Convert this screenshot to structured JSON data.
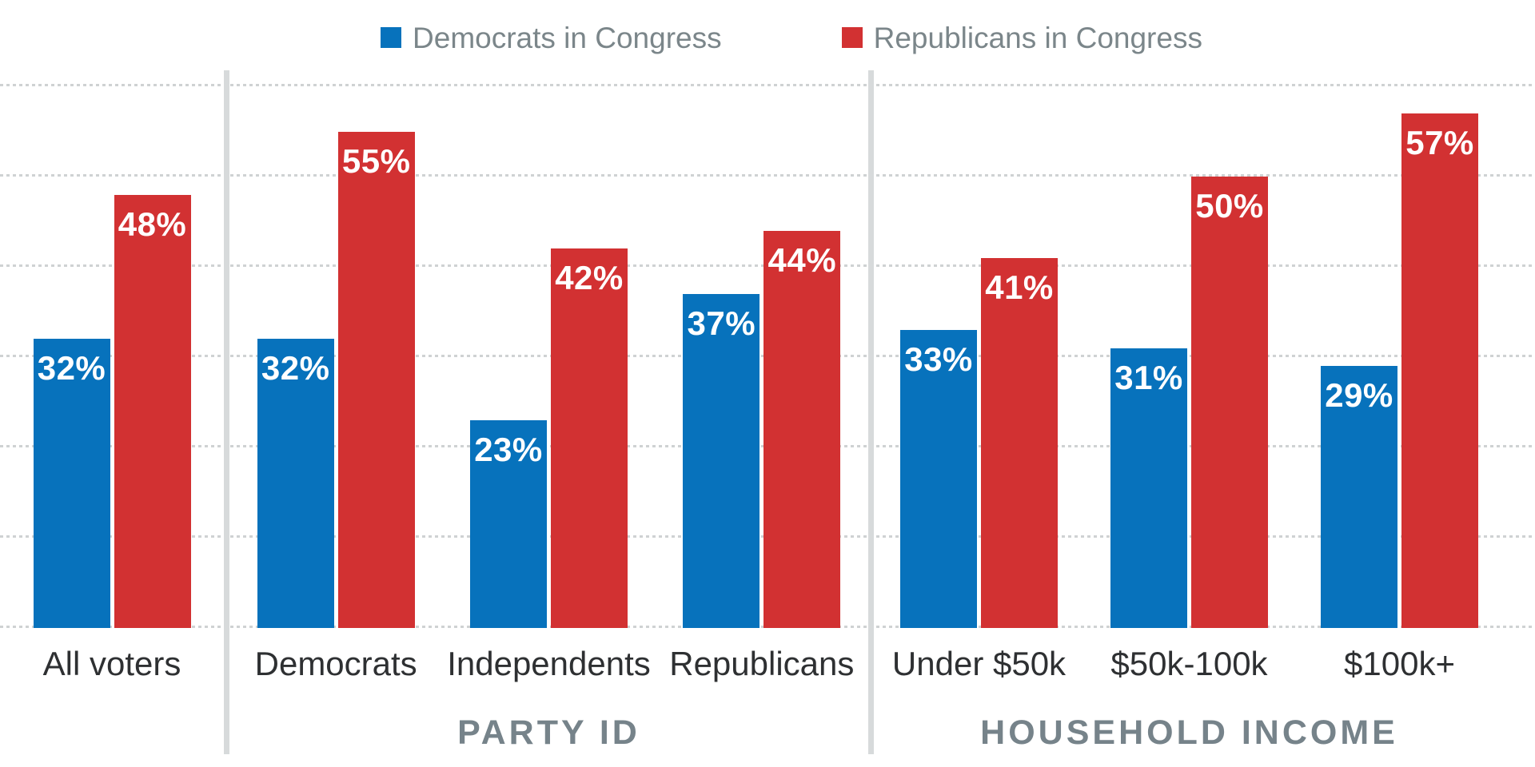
{
  "chart_data": {
    "type": "bar",
    "unit": "%",
    "series": [
      {
        "name": "Democrats in Congress",
        "color": "#0772bc"
      },
      {
        "name": "Republicans in Congress",
        "color": "#d23132"
      }
    ],
    "ylim": [
      0,
      60
    ],
    "gridlines_percent": [
      0,
      10,
      20,
      30,
      40,
      50,
      60
    ],
    "grid": "dotted horizontal gridlines every 10%, no y-axis tick labels",
    "legend_position": "top center",
    "value_labels": "inside bar tops, white bold, value + %",
    "sections": [
      {
        "title": "",
        "groups": [
          {
            "label": "All voters",
            "values": [
              32,
              48
            ]
          }
        ]
      },
      {
        "title": "PARTY ID",
        "groups": [
          {
            "label": "Democrats",
            "values": [
              32,
              55
            ]
          },
          {
            "label": "Independents",
            "values": [
              23,
              42
            ]
          },
          {
            "label": "Republicans",
            "values": [
              37,
              44
            ]
          }
        ]
      },
      {
        "title": "HOUSEHOLD INCOME",
        "groups": [
          {
            "label": "Under $50k",
            "values": [
              33,
              41
            ]
          },
          {
            "label": "$50k-100k",
            "values": [
              31,
              50
            ]
          },
          {
            "label": "$100k+",
            "values": [
              29,
              57
            ]
          }
        ]
      }
    ],
    "style_colors": {
      "democrat_blue": "#0772bc",
      "republican_red": "#d23132",
      "gridline": "#cfd2d3",
      "section_divider": "#d7dadb",
      "category_label": "#2e3032",
      "section_title": "#76838a",
      "legend_text": "#7b868a"
    }
  }
}
